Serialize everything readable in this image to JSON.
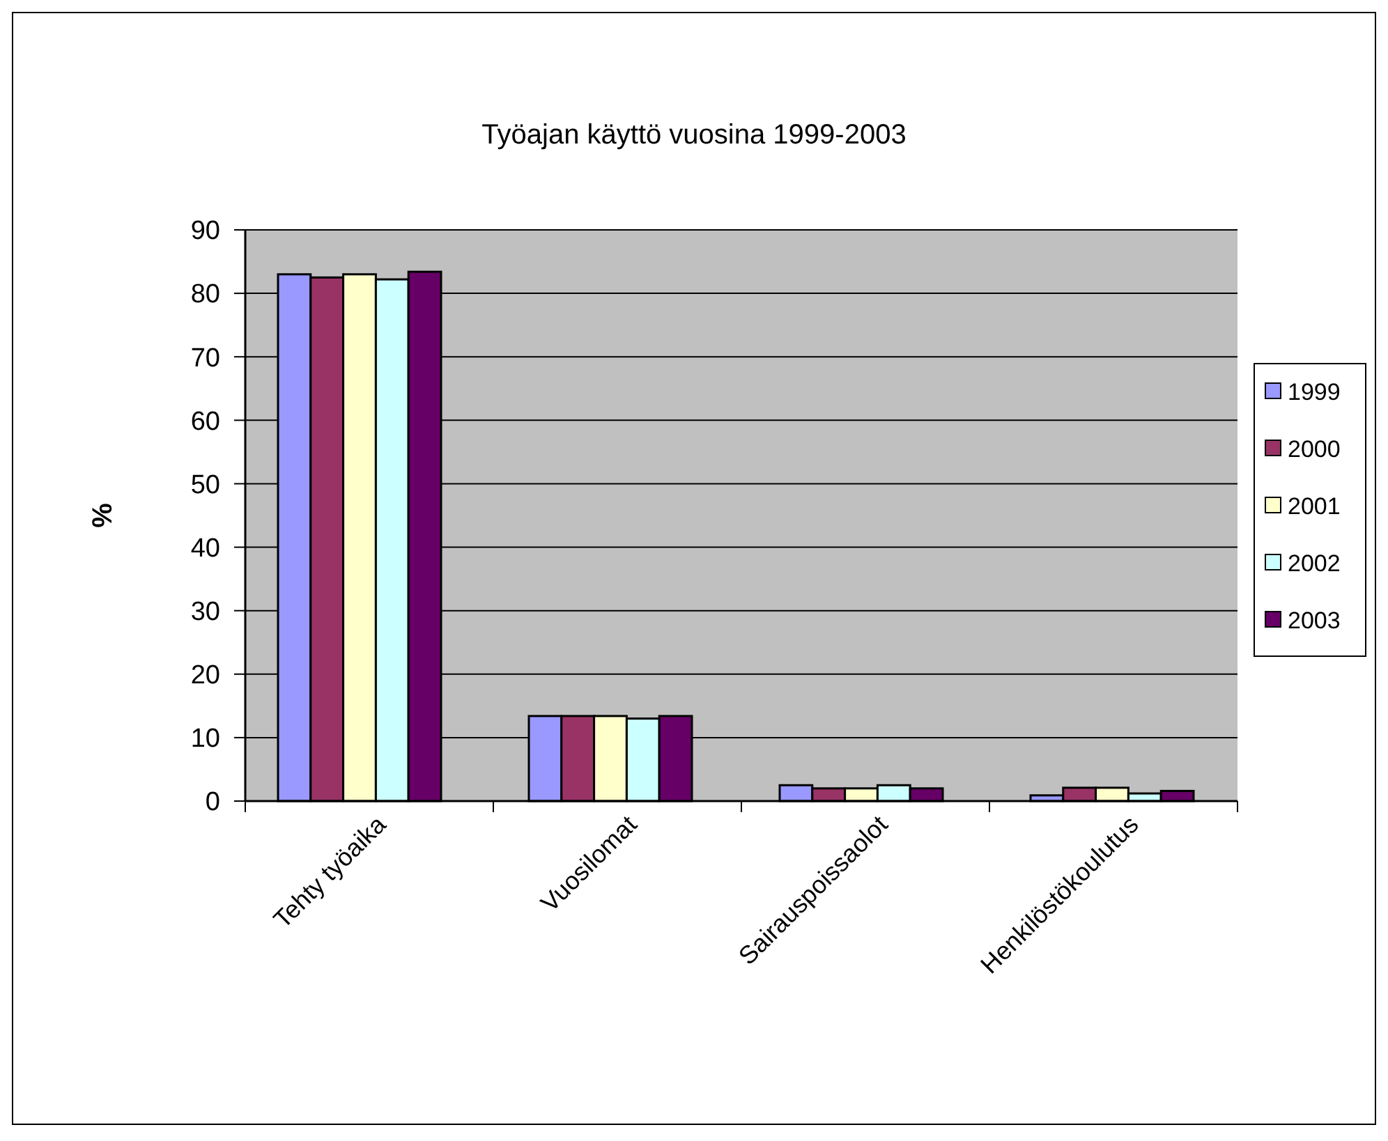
{
  "chart_data": {
    "type": "bar",
    "title": "Työajan käyttö vuosina 1999-2003",
    "ylabel": "%",
    "categories": [
      "Tehty työaika",
      "Vuosilomat",
      "Sairauspoissaolot",
      "Henkilöstökoulutus"
    ],
    "series": [
      {
        "name": "1999",
        "color": "#9999ff",
        "values": [
          83,
          13.4,
          2.5,
          0.9
        ]
      },
      {
        "name": "2000",
        "color": "#993366",
        "values": [
          82.5,
          13.4,
          2.0,
          2.1
        ]
      },
      {
        "name": "2001",
        "color": "#ffffcc",
        "values": [
          83,
          13.4,
          2.0,
          2.1
        ]
      },
      {
        "name": "2002",
        "color": "#ccffff",
        "values": [
          82.2,
          13.0,
          2.5,
          1.2
        ]
      },
      {
        "name": "2003",
        "color": "#660066",
        "values": [
          83.4,
          13.4,
          2.0,
          1.6
        ]
      }
    ],
    "ylim": [
      0,
      90
    ],
    "yticks": [
      0,
      10,
      20,
      30,
      40,
      50,
      60,
      70,
      80,
      90
    ],
    "grid": "y",
    "legend": "right"
  }
}
